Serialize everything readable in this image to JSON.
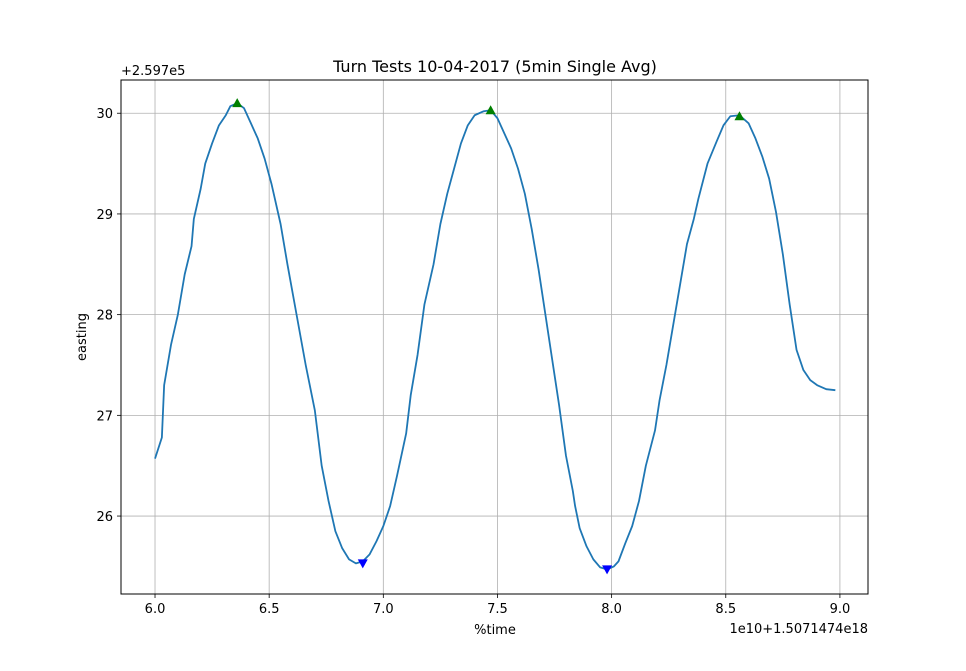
{
  "chart_data": {
    "type": "line",
    "title": "Turn Tests 10-04-2017 (5min Single Avg)",
    "x_label": "%time",
    "y_label": "easting",
    "x_offset_text": "1e10+1.5071474e18",
    "y_offset_text": "+2.597e5",
    "grid": true,
    "xlim": [
      5.851,
      9.123
    ],
    "ylim": [
      25.226,
      30.33
    ],
    "xticks": [
      {
        "value": 6.0,
        "label": "6.0"
      },
      {
        "value": 6.5,
        "label": "6.5"
      },
      {
        "value": 7.0,
        "label": "7.0"
      },
      {
        "value": 7.5,
        "label": "7.5"
      },
      {
        "value": 8.0,
        "label": "8.0"
      },
      {
        "value": 8.5,
        "label": "8.5"
      },
      {
        "value": 9.0,
        "label": "9.0"
      }
    ],
    "yticks": [
      26,
      27,
      28,
      29,
      30
    ],
    "series": [
      {
        "color": "#1f77b4",
        "style": "line",
        "x": [
          6.0,
          6.03,
          6.04,
          6.07,
          6.1,
          6.13,
          6.16,
          6.17,
          6.2,
          6.22,
          6.25,
          6.28,
          6.31,
          6.33,
          6.36,
          6.39,
          6.42,
          6.45,
          6.48,
          6.51,
          6.55,
          6.58,
          6.62,
          6.66,
          6.7,
          6.73,
          6.76,
          6.79,
          6.82,
          6.85,
          6.88,
          6.91,
          6.94,
          6.97,
          7.0,
          7.03,
          7.06,
          7.1,
          7.12,
          7.15,
          7.18,
          7.22,
          7.25,
          7.28,
          7.31,
          7.34,
          7.37,
          7.4,
          7.44,
          7.47,
          7.5,
          7.53,
          7.56,
          7.59,
          7.62,
          7.65,
          7.68,
          7.71,
          7.74,
          7.77,
          7.8,
          7.83,
          7.84,
          7.86,
          7.89,
          7.92,
          7.95,
          7.98,
          8.01,
          8.03,
          8.06,
          8.09,
          8.12,
          8.15,
          8.19,
          8.21,
          8.24,
          8.27,
          8.3,
          8.33,
          8.36,
          8.38,
          8.42,
          8.46,
          8.49,
          8.52,
          8.56,
          8.6,
          8.63,
          8.66,
          8.69,
          8.72,
          8.75,
          8.78,
          8.81,
          8.84,
          8.87,
          8.9,
          8.94,
          8.98
        ],
        "values": [
          26.57,
          26.78,
          27.3,
          27.7,
          28.0,
          28.4,
          28.68,
          28.95,
          29.25,
          29.5,
          29.7,
          29.88,
          29.98,
          30.07,
          30.1,
          30.05,
          29.9,
          29.75,
          29.55,
          29.3,
          28.9,
          28.5,
          28.0,
          27.5,
          27.05,
          26.5,
          26.15,
          25.85,
          25.68,
          25.57,
          25.53,
          25.55,
          25.62,
          25.75,
          25.9,
          26.1,
          26.4,
          26.82,
          27.2,
          27.6,
          28.1,
          28.5,
          28.9,
          29.2,
          29.45,
          29.7,
          29.88,
          29.98,
          30.02,
          30.03,
          29.95,
          29.8,
          29.65,
          29.45,
          29.2,
          28.85,
          28.45,
          28.0,
          27.55,
          27.1,
          26.6,
          26.25,
          26.1,
          25.88,
          25.7,
          25.57,
          25.49,
          25.47,
          25.5,
          25.55,
          25.73,
          25.9,
          26.15,
          26.5,
          26.85,
          27.15,
          27.5,
          27.9,
          28.3,
          28.7,
          28.95,
          29.15,
          29.5,
          29.72,
          29.88,
          29.97,
          29.98,
          29.9,
          29.75,
          29.57,
          29.35,
          29.02,
          28.6,
          28.1,
          27.65,
          27.45,
          27.35,
          27.3,
          27.26,
          27.25
        ]
      },
      {
        "color": "#008000",
        "style": "marker-up",
        "x": [
          6.36,
          7.47,
          8.56
        ],
        "values": [
          30.1,
          30.03,
          29.97
        ]
      },
      {
        "color": "#0000ff",
        "style": "marker-down",
        "x": [
          6.91,
          7.98
        ],
        "values": [
          25.53,
          25.47
        ]
      }
    ]
  }
}
